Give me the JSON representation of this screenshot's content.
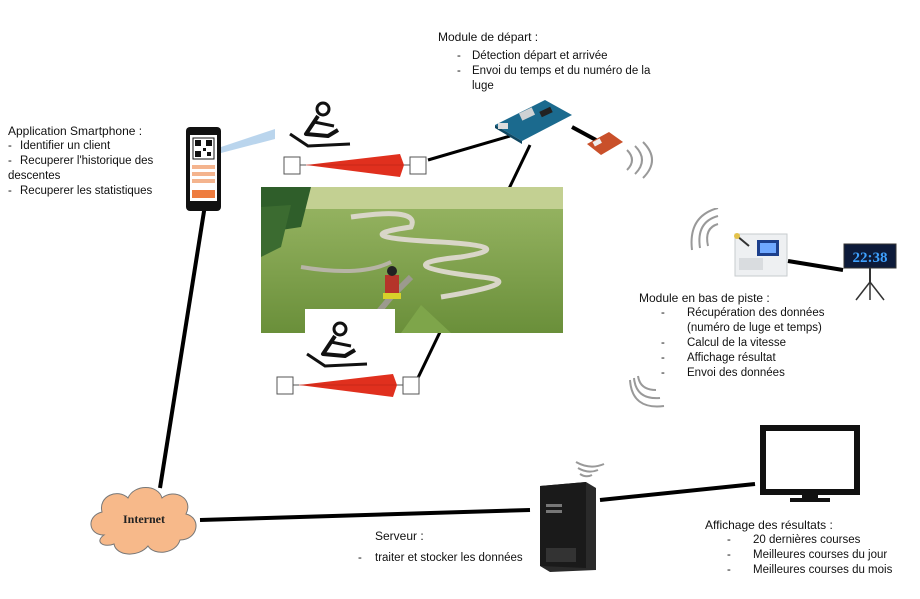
{
  "start_module": {
    "title": "Module de départ :",
    "items": [
      "Détection départ et arrivée",
      "Envoi du temps et du numéro de la",
      "luge"
    ]
  },
  "smartphone_app": {
    "title": "Application Smartphone :",
    "items": [
      "Identifier un client",
      "Recuperer l'historique des",
      "descentes",
      "Recuperer les statistiques"
    ]
  },
  "bottom_module": {
    "title": "Module en bas de piste :",
    "items": [
      "Récupération des données",
      "(numéro de luge et temps)",
      "Calcul de la vitesse",
      "Affichage résultat",
      "Envoi des données"
    ]
  },
  "server": {
    "title": "Serveur :",
    "items": [
      "traiter et stocker les données"
    ]
  },
  "results_display": {
    "title": "Affichage des résultats :",
    "items": [
      "20 dernières courses",
      "Meilleures courses du jour",
      "Meilleures courses du mois"
    ]
  },
  "internet": {
    "label": "Internet"
  },
  "clock": {
    "display": "22:38"
  },
  "colors": {
    "sensor_beam": "#e0301e",
    "cloud": "#f7b98a",
    "line": "#000000",
    "grass": "#7fa14a"
  }
}
